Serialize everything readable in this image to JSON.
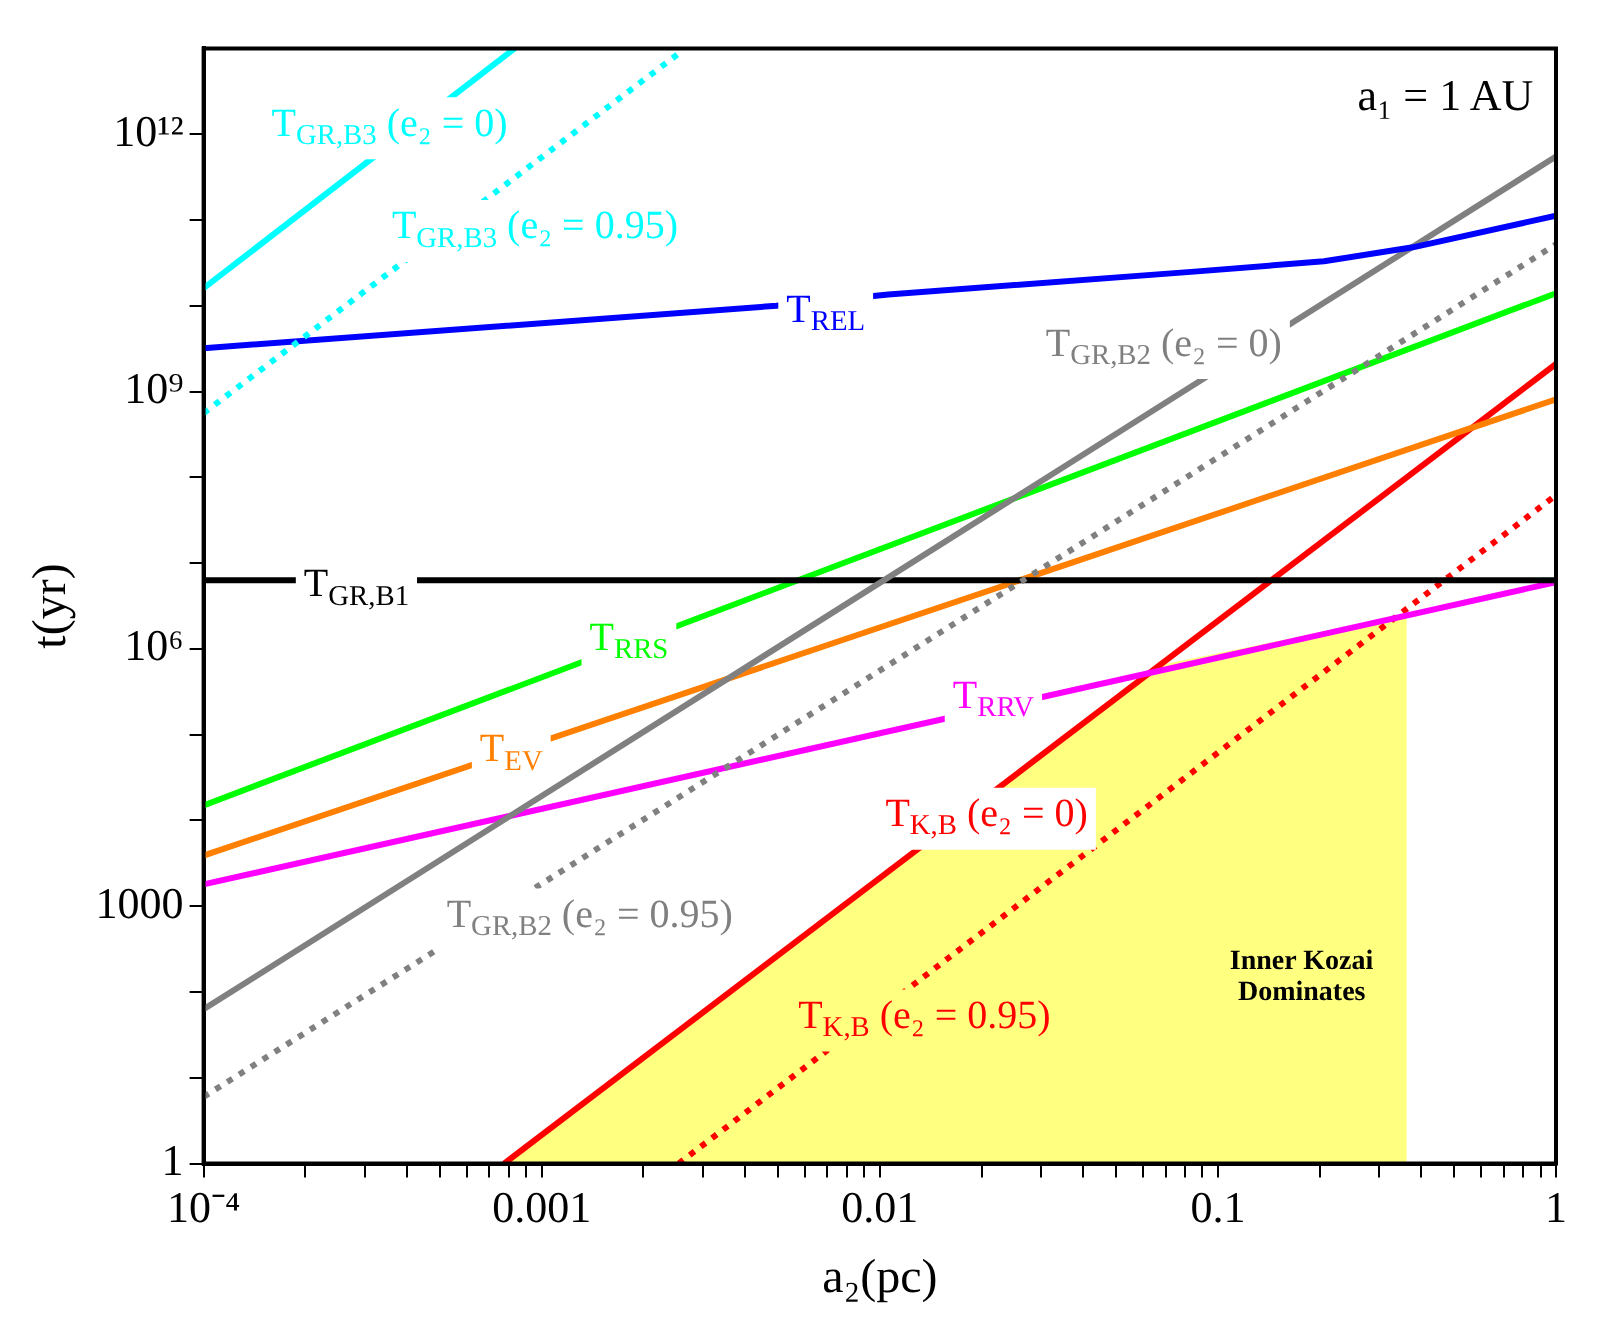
{
  "chart_data": {
    "type": "line",
    "xlabel": "a₂(pc)",
    "ylabel": "t(yr)",
    "log": "xy",
    "xlim": [
      0.0001,
      1
    ],
    "ylim": [
      1,
      10000000000000
    ],
    "xticks": [
      {
        "value": 0.0001,
        "label": "10⁻⁴"
      },
      {
        "value": 0.0002,
        "label": null
      },
      {
        "value": 0.0003,
        "label": null
      },
      {
        "value": 0.0004,
        "label": null
      },
      {
        "value": 0.0005,
        "label": null
      },
      {
        "value": 0.0006,
        "label": null
      },
      {
        "value": 0.0007,
        "label": null
      },
      {
        "value": 0.0008,
        "label": null
      },
      {
        "value": 0.0009,
        "label": null
      },
      0.001,
      {
        "value": 0.002,
        "label": null
      },
      {
        "value": 0.003,
        "label": null
      },
      {
        "value": 0.004,
        "label": null
      },
      {
        "value": 0.005,
        "label": null
      },
      {
        "value": 0.006,
        "label": null
      },
      {
        "value": 0.007,
        "label": null
      },
      {
        "value": 0.008,
        "label": null
      },
      {
        "value": 0.009,
        "label": null
      },
      0.01,
      {
        "value": 0.02,
        "label": null
      },
      {
        "value": 0.03,
        "label": null
      },
      {
        "value": 0.04,
        "label": null
      },
      {
        "value": 0.05,
        "label": null
      },
      {
        "value": 0.06,
        "label": null
      },
      {
        "value": 0.07,
        "label": null
      },
      {
        "value": 0.08,
        "label": null
      },
      {
        "value": 0.09,
        "label": null
      },
      0.1,
      {
        "value": 0.2,
        "label": null
      },
      {
        "value": 0.3,
        "label": null
      },
      {
        "value": 0.4,
        "label": null
      },
      {
        "value": 0.5,
        "label": null
      },
      {
        "value": 0.6,
        "label": null
      },
      {
        "value": 0.7,
        "label": null
      },
      {
        "value": 0.8,
        "label": null
      },
      {
        "value": 0.9,
        "label": null
      },
      1
    ],
    "yticks": [
      1,
      {
        "value": 10,
        "label": null
      },
      {
        "value": 100,
        "label": null
      },
      1000,
      {
        "value": 10000,
        "label": null
      },
      {
        "value": 100000,
        "label": null
      },
      {
        "value": 1000000,
        "label": "10⁶"
      },
      {
        "value": 10000000,
        "label": null
      },
      {
        "value": 100000000,
        "label": null
      },
      {
        "value": 1000000000,
        "label": "10⁹"
      },
      {
        "value": 10000000000,
        "label": null
      },
      {
        "value": 100000000000,
        "label": null
      },
      {
        "value": 1000000000000,
        "label": "10¹²"
      }
    ],
    "series": [
      {
        "color": "#00ffff",
        "x": [
          0.0001,
          0.000832
        ],
        "values": [
          16000000000,
          10000000000000
        ]
      },
      {
        "color": "#00ffff",
        "line_style": "dotted",
        "x": [
          0.0001,
          0.00254
        ],
        "values": [
          560000000,
          8700000000000
        ]
      },
      {
        "color": "#0000ff",
        "x": [
          0.0001,
          0.00495,
          0.0106,
          0.0851,
          0.206,
          0.377,
          1
        ],
        "values": [
          3200000000,
          10000000000,
          13500000000,
          25000000000,
          33000000000,
          48000000000,
          112000000000
        ]
      },
      {
        "color": "#808080",
        "x": [
          0.0001,
          1
        ],
        "values": [
          63,
          550000000000
        ]
      },
      {
        "color": "#808080",
        "line_style": "dotted",
        "x": [
          0.0001,
          1
        ],
        "values": [
          6,
          52000000000
        ]
      },
      {
        "color": "#000000",
        "x": [
          0.0001,
          1
        ],
        "values": [
          6300000,
          6300000
        ]
      },
      {
        "color": "#00ff00",
        "x": [
          0.0001,
          1
        ],
        "values": [
          15000,
          14000000000
        ]
      },
      {
        "color": "#ff8000",
        "x": [
          0.0001,
          1
        ],
        "values": [
          3900,
          810000000
        ]
      },
      {
        "color": "#ff00ff",
        "x": [
          0.0001,
          1
        ],
        "values": [
          1800,
          6000000
        ]
      },
      {
        "color": "#ff0000",
        "x": [
          0.000774,
          1
        ],
        "values": [
          1,
          2100000000
        ]
      },
      {
        "color": "#ff0000",
        "line_style": "dotted",
        "x": [
          0.00254,
          1
        ],
        "values": [
          1,
          62000000
        ]
      },
      {
        "type": "area",
        "color": "#ffff80",
        "x": [
          0.000774,
          0.0676,
          0.362
        ],
        "values": [
          1,
          650000,
          2500000
        ]
      }
    ],
    "annotations": [
      "T$_{GR,B3}$ (e₂ = 0)",
      "T$_{GR,B3}$ (e₂ = 0.95)",
      "T$_{REL}$",
      "T$_{GR,B2}$ (e₂ = 0)",
      "T$_{GR,B1}$",
      "T$_{RRS}$",
      "T$_{EV}$",
      "T$_{RRV}$",
      "T$_{GR,B2}$ (e₂ = 0.95)",
      "T$_{K,B}$ (e₂ = 0)",
      "T$_{K,B}$ (e₂ = 0.95)",
      "Inner Kozai\nDominates",
      "a₁ = 1 AU"
    ]
  }
}
